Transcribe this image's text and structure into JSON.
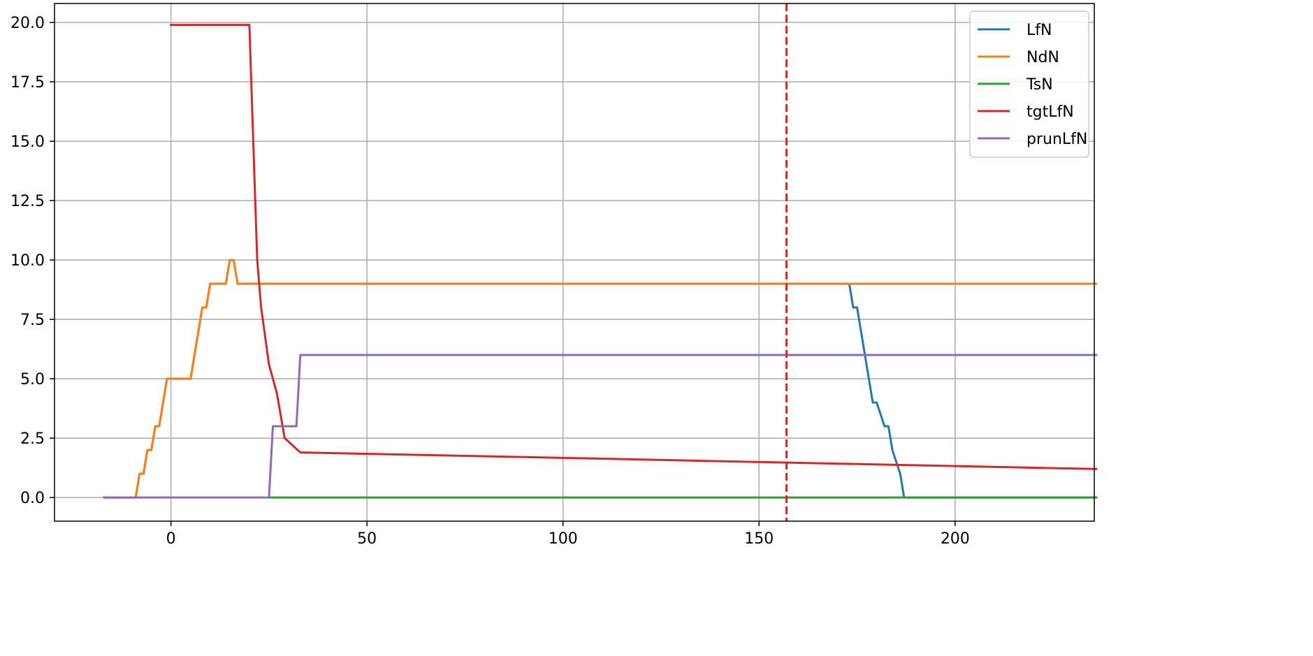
{
  "chart_data": {
    "type": "line",
    "title": "",
    "xlabel": "",
    "ylabel": "",
    "xlim": [
      -29.7,
      235.5
    ],
    "ylim": [
      -0.995,
      20.8
    ],
    "grid": true,
    "legend_placement": "top-right",
    "x_ticks": [
      {
        "value": 0,
        "label": "0"
      },
      {
        "value": 50,
        "label": "50"
      },
      {
        "value": 100,
        "label": "100"
      },
      {
        "value": 150,
        "label": "150"
      },
      {
        "value": 200,
        "label": "200"
      }
    ],
    "y_ticks": [
      {
        "value": 0,
        "label": "0.0"
      },
      {
        "value": 2.5,
        "label": "2.5"
      },
      {
        "value": 5,
        "label": "5.0"
      },
      {
        "value": 7.5,
        "label": "7.5"
      },
      {
        "value": 10,
        "label": "10.0"
      },
      {
        "value": 12.5,
        "label": "12.5"
      },
      {
        "value": 15,
        "label": "15.0"
      },
      {
        "value": 17.5,
        "label": "17.5"
      },
      {
        "value": 20,
        "label": "20.0"
      }
    ],
    "vertical_line": {
      "x": 157,
      "color": "#d62728",
      "style": "dashed"
    },
    "series": [
      {
        "name": "LfN",
        "color": "#1f77b4",
        "x": [
          -17,
          -9,
          -8,
          -7,
          -6,
          -5,
          -4,
          -3,
          -1,
          0,
          5,
          8,
          9,
          10,
          14,
          15,
          16,
          17,
          173,
          174,
          175,
          178,
          179,
          180,
          182,
          183,
          184,
          186,
          187,
          236
        ],
        "y": [
          0,
          0,
          1,
          1,
          2,
          2,
          3,
          3,
          5,
          5,
          5,
          8,
          8,
          9,
          9,
          10,
          10,
          9,
          9,
          8,
          8,
          5,
          4,
          4,
          3,
          3,
          2,
          1,
          0,
          0
        ]
      },
      {
        "name": "NdN",
        "color": "#ff7f0e",
        "x": [
          -17,
          -9,
          -8,
          -7,
          -6,
          -5,
          -4,
          -3,
          -1,
          0,
          5,
          8,
          9,
          10,
          14,
          15,
          16,
          17,
          236
        ],
        "y": [
          0,
          0,
          1,
          1,
          2,
          2,
          3,
          3,
          5,
          5,
          5,
          8,
          8,
          9,
          9,
          10,
          10,
          9,
          9
        ]
      },
      {
        "name": "TsN",
        "color": "#2ca02c",
        "x": [
          25,
          236
        ],
        "y": [
          0,
          0
        ]
      },
      {
        "name": "tgtLfN",
        "color": "#d62728",
        "x": [
          0,
          20,
          22,
          23,
          24,
          25,
          27,
          29,
          33,
          236
        ],
        "y": [
          19.9,
          19.9,
          10,
          8,
          6.8,
          5.6,
          4.4,
          2.5,
          1.9,
          1.2
        ]
      },
      {
        "name": "prunLfN",
        "color": "#9467bd",
        "x": [
          -17,
          25,
          26,
          32,
          33,
          236
        ],
        "y": [
          0,
          0,
          3,
          3,
          6,
          6
        ]
      }
    ]
  }
}
